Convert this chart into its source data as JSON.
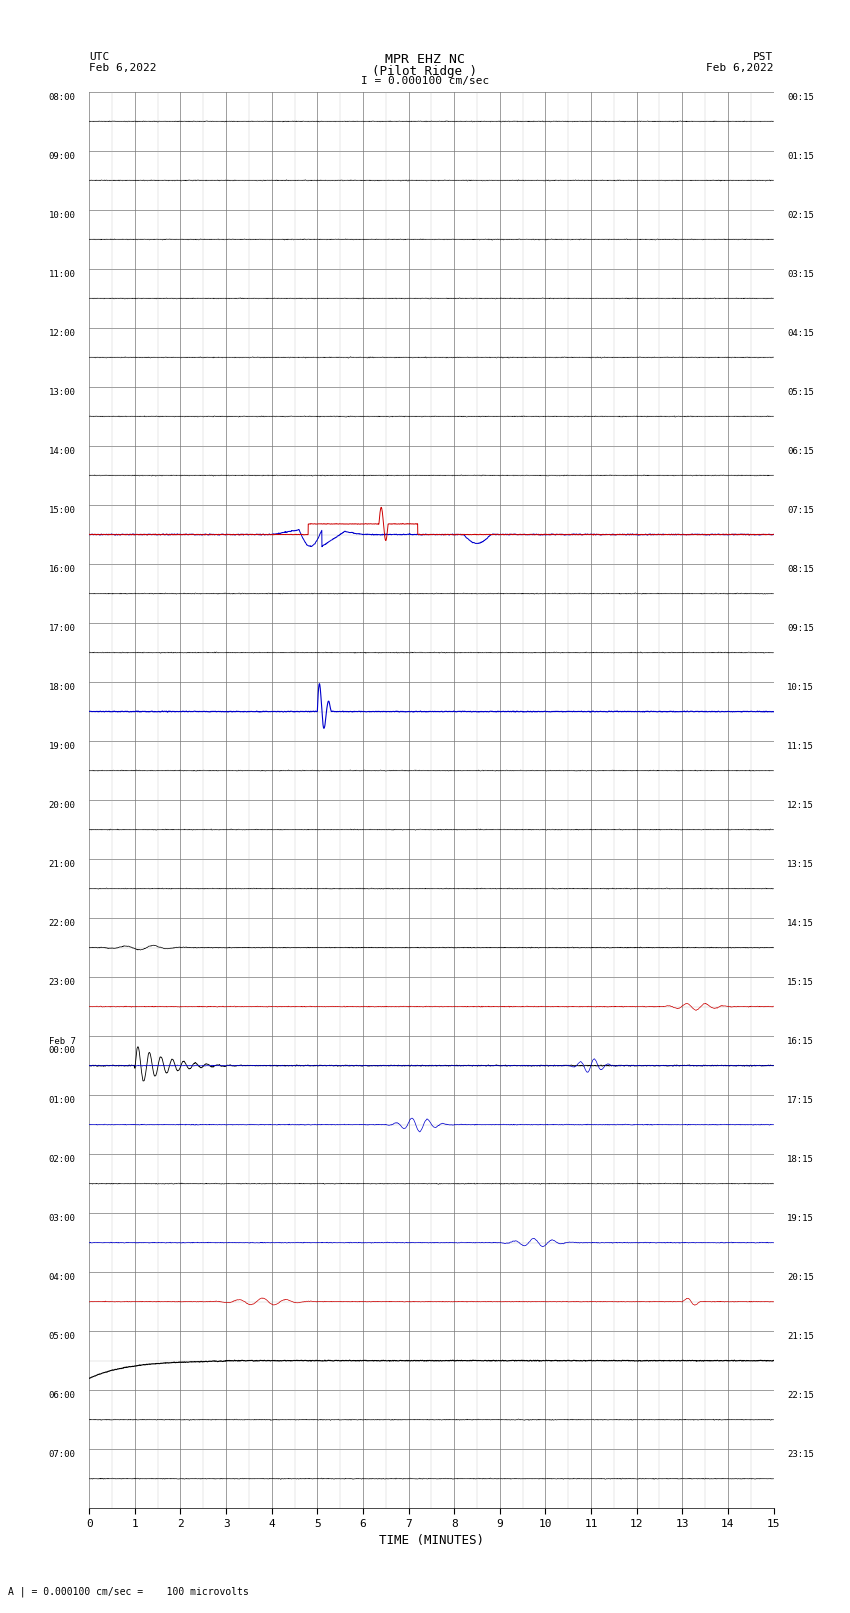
{
  "title_line1": "MPR EHZ NC",
  "title_line2": "(Pilot Ridge )",
  "title_line3": "I = 0.000100 cm/sec",
  "left_header_line1": "UTC",
  "left_header_line2": "Feb 6,2022",
  "right_header_line1": "PST",
  "right_header_line2": "Feb 6,2022",
  "bottom_label": "TIME (MINUTES)",
  "bottom_note": "A | = 0.000100 cm/sec =    100 microvolts",
  "utc_times": [
    "08:00",
    "09:00",
    "10:00",
    "11:00",
    "12:00",
    "13:00",
    "14:00",
    "15:00",
    "16:00",
    "17:00",
    "18:00",
    "19:00",
    "20:00",
    "21:00",
    "22:00",
    "23:00",
    "Feb 7\n00:00",
    "01:00",
    "02:00",
    "03:00",
    "04:00",
    "05:00",
    "06:00",
    "07:00"
  ],
  "pst_times": [
    "00:15",
    "01:15",
    "02:15",
    "03:15",
    "04:15",
    "05:15",
    "06:15",
    "07:15",
    "08:15",
    "09:15",
    "10:15",
    "11:15",
    "12:15",
    "13:15",
    "14:15",
    "15:15",
    "16:15",
    "17:15",
    "18:15",
    "19:15",
    "20:15",
    "21:15",
    "22:15",
    "23:15"
  ],
  "n_rows": 24,
  "x_min": 0,
  "x_max": 15,
  "x_ticks": [
    0,
    1,
    2,
    3,
    4,
    5,
    6,
    7,
    8,
    9,
    10,
    11,
    12,
    13,
    14,
    15
  ],
  "background_color": "#ffffff",
  "grid_color_major": "#777777",
  "grid_color_minor": "#aaaaaa",
  "trace_color_black": "#000000",
  "trace_color_blue": "#0000cc",
  "trace_color_red": "#cc0000",
  "trace_color_green": "#006600",
  "fig_width": 8.5,
  "fig_height": 16.13
}
